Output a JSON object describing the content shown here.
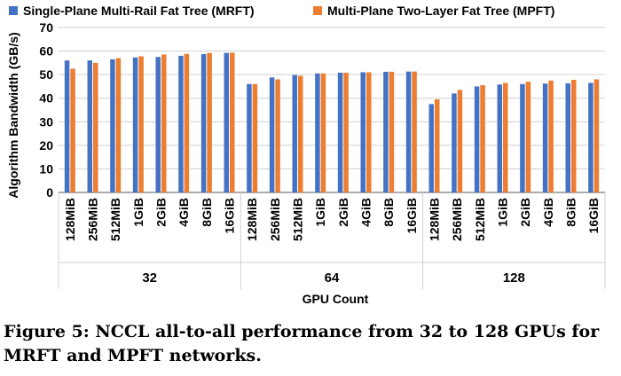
{
  "caption": "Figure 5: NCCL all-to-all performance from 32 to 128 GPUs for MRFT and MPFT networks.",
  "colors": {
    "mrft": "#4472c4",
    "mpft": "#ed7d31",
    "grid": "#d0d0d0",
    "axis": "#595959"
  },
  "chart_data": {
    "type": "bar",
    "ylabel": "Algorithm Bandwidth (GB/s)",
    "xlabel": "GPU Count",
    "ylim": [
      0,
      70
    ],
    "yticks": [
      "0",
      "10",
      "20",
      "30",
      "40",
      "50",
      "60",
      "70"
    ],
    "grid": true,
    "legend_position": "top",
    "groups": [
      "32",
      "64",
      "128"
    ],
    "categories": [
      "128MiB",
      "256MiB",
      "512MiB",
      "1GiB",
      "2GiB",
      "4GiB",
      "8GiB",
      "16GiB"
    ],
    "series": [
      {
        "name": "Single-Plane Multi-Rail Fat Tree (MRFT)",
        "values": [
          [
            56.0,
            56.0,
            56.5,
            57.3,
            57.5,
            58.0,
            58.7,
            59.2
          ],
          [
            46.0,
            48.8,
            49.8,
            50.5,
            50.8,
            51.0,
            51.2,
            51.3
          ],
          [
            37.5,
            42.0,
            45.0,
            45.8,
            46.0,
            46.2,
            46.3,
            46.5
          ]
        ]
      },
      {
        "name": "Multi-Plane Two-Layer Fat Tree (MPFT)",
        "values": [
          [
            52.5,
            55.0,
            57.0,
            57.8,
            58.5,
            58.8,
            59.2,
            59.3
          ],
          [
            46.0,
            48.0,
            49.5,
            50.5,
            50.8,
            51.0,
            51.2,
            51.3
          ],
          [
            39.5,
            43.5,
            45.5,
            46.5,
            47.0,
            47.5,
            47.8,
            48.0
          ]
        ]
      }
    ]
  }
}
